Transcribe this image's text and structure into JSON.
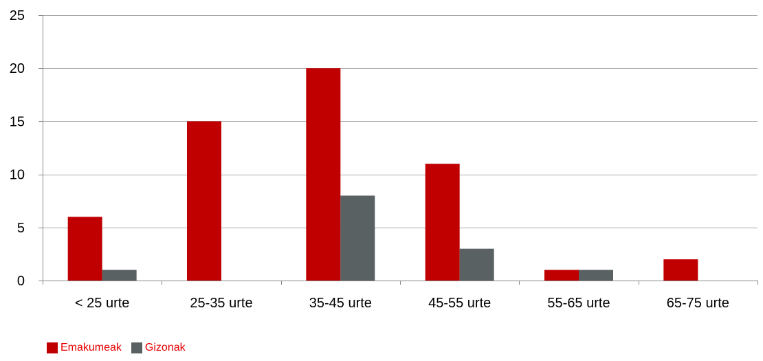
{
  "chart_data": {
    "type": "bar",
    "title": "",
    "xlabel": "",
    "ylabel": "",
    "categories": [
      "< 25 urte",
      "25-35 urte",
      "35-45 urte",
      "45-55 urte",
      "55-65 urte",
      "65-75 urte"
    ],
    "series": [
      {
        "name": "Emakumeak",
        "values": [
          6,
          15,
          20,
          11,
          1,
          2
        ],
        "color": "#c00000"
      },
      {
        "name": "Gizonak",
        "values": [
          1,
          0,
          8,
          3,
          1,
          0
        ],
        "color": "#5a6163"
      }
    ],
    "ylim": [
      0,
      25
    ],
    "yticks": [
      0,
      5,
      10,
      15,
      20,
      25
    ],
    "grid": true,
    "legend_position": "bottom-left",
    "legend_text_color": "#e60000",
    "gridline_color": "#a6a6a6",
    "axis_color": "#868686"
  }
}
